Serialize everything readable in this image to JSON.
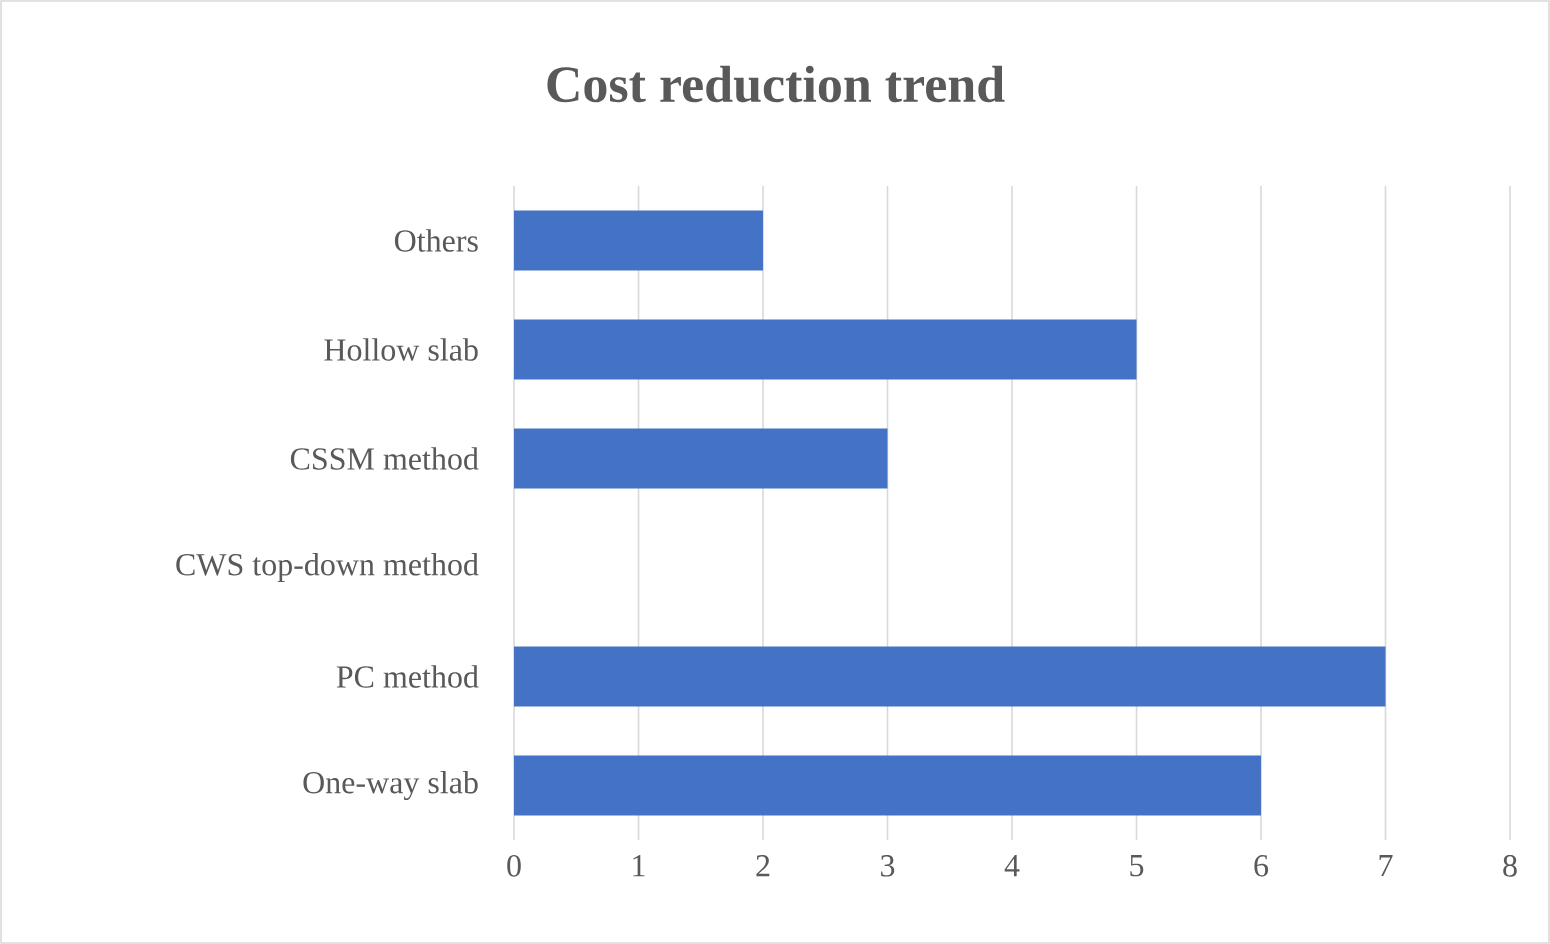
{
  "chart_data": {
    "type": "bar",
    "orientation": "horizontal",
    "title": "Cost reduction trend",
    "categories": [
      "Others",
      "Hollow slab",
      "CSSM method",
      "CWS top-down method",
      "PC method",
      "One-way slab"
    ],
    "values": [
      2,
      5,
      3,
      0,
      7,
      6
    ],
    "color": "#4472c4",
    "xlim": [
      0,
      8
    ],
    "xticks": [
      0,
      1,
      2,
      3,
      4,
      5,
      6,
      7,
      8
    ],
    "grid": "x"
  }
}
